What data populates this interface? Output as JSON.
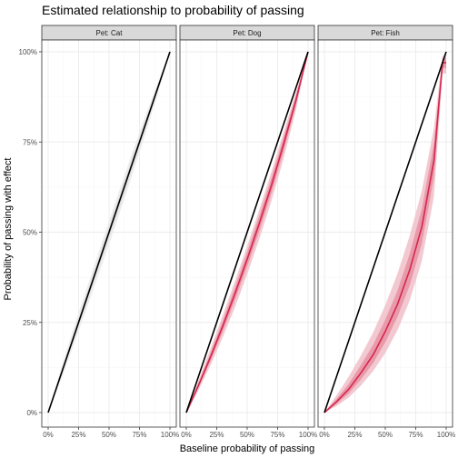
{
  "chart_data": {
    "type": "line",
    "title": "Estimated relationship to probability of passing",
    "xlabel": "Baseline probability of passing",
    "ylabel": "Probability of passing with effect",
    "xlim": [
      0,
      1
    ],
    "ylim": [
      0,
      1
    ],
    "x_ticks": [
      0,
      0.25,
      0.5,
      0.75,
      1
    ],
    "x_tick_labels": [
      "0%",
      "25%",
      "50%",
      "75%",
      "100%"
    ],
    "y_ticks": [
      0,
      0.25,
      0.5,
      0.75,
      1
    ],
    "y_tick_labels": [
      "0%",
      "25%",
      "50%",
      "75%",
      "100%"
    ],
    "grid": true,
    "legend": "none",
    "colors": {
      "reference": "#000000",
      "estimate": "#d6264d",
      "band_outer": "#f2c3cc",
      "band_inner": "#e58fa0",
      "cat_band": "#d9d9d9",
      "strip_bg": "#d9d9d9",
      "grid": "#ebebeb"
    },
    "panels": [
      {
        "label": "Pet: Cat",
        "x": [
          0,
          0.1,
          0.2,
          0.3,
          0.4,
          0.5,
          0.6,
          0.7,
          0.8,
          0.9,
          1
        ],
        "reference": [
          0,
          0.1,
          0.2,
          0.3,
          0.4,
          0.5,
          0.6,
          0.7,
          0.8,
          0.9,
          1
        ],
        "estimate": [
          0,
          0.1,
          0.2,
          0.3,
          0.4,
          0.5,
          0.6,
          0.7,
          0.8,
          0.9,
          1
        ],
        "outer_lower": [
          0,
          0.085,
          0.178,
          0.272,
          0.368,
          0.465,
          0.565,
          0.668,
          0.773,
          0.882,
          1
        ],
        "outer_upper": [
          0,
          0.118,
          0.225,
          0.328,
          0.43,
          0.532,
          0.632,
          0.73,
          0.825,
          0.915,
          1
        ],
        "inner_lower": [
          0,
          0.093,
          0.19,
          0.287,
          0.385,
          0.483,
          0.582,
          0.683,
          0.786,
          0.89,
          1
        ],
        "inner_upper": [
          0,
          0.108,
          0.211,
          0.313,
          0.415,
          0.516,
          0.616,
          0.716,
          0.813,
          0.908,
          1
        ],
        "show_estimate": false
      },
      {
        "label": "Pet: Dog",
        "x": [
          0,
          0.1,
          0.2,
          0.3,
          0.4,
          0.5,
          0.6,
          0.7,
          0.8,
          0.9,
          1
        ],
        "reference": [
          0,
          0.1,
          0.2,
          0.3,
          0.4,
          0.5,
          0.6,
          0.7,
          0.8,
          0.9,
          1
        ],
        "estimate": [
          0,
          0.075,
          0.155,
          0.24,
          0.33,
          0.425,
          0.525,
          0.63,
          0.745,
          0.865,
          1
        ],
        "outer_lower": [
          0,
          0.062,
          0.132,
          0.209,
          0.292,
          0.383,
          0.481,
          0.587,
          0.705,
          0.838,
          1
        ],
        "outer_upper": [
          0,
          0.09,
          0.178,
          0.27,
          0.365,
          0.462,
          0.563,
          0.668,
          0.778,
          0.887,
          1
        ],
        "inner_lower": [
          0,
          0.069,
          0.144,
          0.225,
          0.312,
          0.405,
          0.503,
          0.609,
          0.725,
          0.851,
          1
        ],
        "inner_upper": [
          0,
          0.082,
          0.166,
          0.255,
          0.348,
          0.445,
          0.546,
          0.651,
          0.764,
          0.878,
          1
        ],
        "show_estimate": true
      },
      {
        "label": "Pet: Fish",
        "x": [
          0,
          0.1,
          0.2,
          0.3,
          0.4,
          0.5,
          0.6,
          0.7,
          0.8,
          0.9,
          0.97,
          1
        ],
        "reference": [
          0,
          0.1,
          0.2,
          0.3,
          0.4,
          0.5,
          0.6,
          0.7,
          0.8,
          0.9,
          0.97,
          1
        ],
        "estimate": [
          0,
          0.03,
          0.065,
          0.11,
          0.16,
          0.225,
          0.3,
          0.395,
          0.515,
          0.7,
          0.97,
          0.97
        ],
        "outer_lower": [
          0,
          0.018,
          0.042,
          0.075,
          0.115,
          0.165,
          0.228,
          0.31,
          0.42,
          0.6,
          0.94,
          0.94
        ],
        "outer_upper": [
          0,
          0.048,
          0.1,
          0.158,
          0.222,
          0.298,
          0.385,
          0.49,
          0.615,
          0.79,
          0.99,
          0.99
        ],
        "inner_lower": [
          0,
          0.024,
          0.053,
          0.092,
          0.137,
          0.195,
          0.265,
          0.352,
          0.468,
          0.652,
          0.955,
          0.955
        ],
        "inner_upper": [
          0,
          0.038,
          0.08,
          0.132,
          0.188,
          0.258,
          0.338,
          0.44,
          0.565,
          0.748,
          0.982,
          0.982
        ],
        "show_estimate": true
      }
    ]
  }
}
